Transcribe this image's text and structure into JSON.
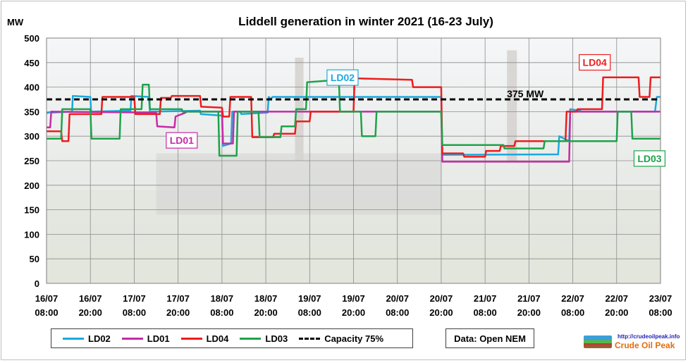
{
  "chart_data": {
    "type": "line",
    "title": "Liddell generation  in winter 2021 (16-23 July)",
    "ylabel": "MW",
    "xlabel": "",
    "ylim": [
      0,
      500
    ],
    "yticks": [
      0,
      50,
      100,
      150,
      200,
      250,
      300,
      350,
      400,
      450,
      500
    ],
    "xticks": [
      "16/07 08:00",
      "16/07 20:00",
      "17/07 08:00",
      "17/07 20:00",
      "18/07 08:00",
      "18/07 20:00",
      "19/07 08:00",
      "19/07 20:00",
      "20/07 08:00",
      "20/07 20:00",
      "21/07 08:00",
      "21/07 20:00",
      "22/07 08:00",
      "22/07 20:00",
      "23/07 08:00"
    ],
    "xlim_hours": [
      0,
      168
    ],
    "grid": true,
    "legend_position": "bottom",
    "series": [
      {
        "name": "LD02",
        "color": "#1ba8e0",
        "x": [
          0,
          1.5,
          1.6,
          7,
          7.2,
          12,
          12.2,
          23,
          23.2,
          28,
          28.3,
          42,
          42.2,
          48,
          48.3,
          50.5,
          50.8,
          53,
          53.3,
          60.5,
          60.8,
          61.5,
          61.8,
          108,
          108.3,
          140,
          140.3,
          143,
          143.3,
          146,
          146.3,
          166.5,
          167,
          168
        ],
        "y": [
          347,
          350,
          348,
          350,
          382,
          380,
          350,
          352,
          382,
          380,
          350,
          352,
          345,
          342,
          280,
          285,
          350,
          350,
          345,
          348,
          380,
          376,
          380,
          380,
          262,
          263,
          300,
          290,
          355,
          352,
          350,
          350,
          380,
          380
        ]
      },
      {
        "name": "LD01",
        "color": "#c52ba6",
        "x": [
          0,
          1,
          1.3,
          30,
          30.3,
          35,
          35.3,
          38,
          38.3,
          48,
          48.3,
          51,
          51.3,
          108,
          108.3,
          143,
          143.3,
          168
        ],
        "y": [
          318,
          318,
          350,
          348,
          320,
          318,
          340,
          348,
          350,
          350,
          285,
          285,
          350,
          350,
          248,
          248,
          350,
          350
        ]
      },
      {
        "name": "LD04",
        "color": "#ee1c1c",
        "x": [
          0,
          4,
          4.3,
          6,
          6.3,
          15,
          15.3,
          24,
          24.3,
          31,
          31.3,
          34,
          34.3,
          42,
          42.3,
          48,
          48.3,
          50,
          50.3,
          56,
          56.3,
          62,
          62.3,
          68,
          68.3,
          72,
          72.3,
          84,
          84.3,
          100,
          100.3,
          108,
          108.3,
          114,
          114.3,
          120,
          120.3,
          124,
          124.3,
          128,
          128.3,
          142,
          142.3,
          145,
          145.3,
          152,
          152.3,
          162,
          162.3,
          165,
          165.3,
          168
        ],
        "y": [
          310,
          310,
          290,
          290,
          345,
          345,
          380,
          380,
          345,
          345,
          378,
          378,
          382,
          382,
          360,
          358,
          340,
          340,
          380,
          380,
          298,
          298,
          305,
          305,
          330,
          330,
          350,
          350,
          418,
          415,
          400,
          400,
          265,
          265,
          258,
          258,
          270,
          270,
          280,
          280,
          290,
          290,
          350,
          350,
          355,
          355,
          420,
          420,
          380,
          380,
          420,
          420
        ]
      },
      {
        "name": "LD03",
        "color": "#1ea34a",
        "x": [
          0,
          4,
          4.3,
          12,
          12.3,
          20,
          20.3,
          26,
          26.3,
          28,
          28.3,
          37,
          37.3,
          47,
          47.3,
          52,
          52.3,
          58,
          58.3,
          64,
          64.3,
          68,
          68.3,
          71,
          71.3,
          80,
          80.3,
          86,
          86.3,
          90,
          90.3,
          96,
          96.3,
          108,
          108.3,
          125,
          125.3,
          136,
          136.3,
          156,
          156.3,
          160,
          160.3,
          168
        ],
        "y": [
          295,
          295,
          355,
          355,
          295,
          295,
          355,
          355,
          405,
          405,
          355,
          355,
          350,
          350,
          260,
          260,
          350,
          350,
          298,
          298,
          320,
          320,
          355,
          355,
          410,
          415,
          350,
          350,
          300,
          300,
          350,
          350,
          350,
          350,
          282,
          282,
          275,
          275,
          290,
          290,
          350,
          350,
          295,
          295
        ]
      },
      {
        "name": "Capacity 75%",
        "color": "#000000",
        "dashed": true,
        "x": [
          0,
          168
        ],
        "y": [
          375,
          375
        ]
      }
    ],
    "annotations": [
      {
        "text": "LD02",
        "color": "#1ba8e0",
        "hour": 81,
        "mw": 418
      },
      {
        "text": "LD01",
        "color": "#c52ba6",
        "hour": 37,
        "mw": 290
      },
      {
        "text": "LD04",
        "color": "#ee1c1c",
        "hour": 150,
        "mw": 449
      },
      {
        "text": "LD03",
        "color": "#1ea34a",
        "hour": 165,
        "mw": 253
      },
      {
        "text": "375 MW",
        "color": "#000000",
        "hour": 131,
        "mw": 385
      }
    ]
  },
  "legend": {
    "items": [
      {
        "label": "LD02",
        "color": "#1ba8e0"
      },
      {
        "label": "LD01",
        "color": "#c52ba6"
      },
      {
        "label": "LD04",
        "color": "#ee1c1c"
      },
      {
        "label": "LD03",
        "color": "#1ea34a"
      },
      {
        "label": "Capacity 75%",
        "color": "#000000",
        "dashed": true
      }
    ]
  },
  "source_label": "Data: Open NEM",
  "logo": {
    "url": "http://crudeoilpeak.info",
    "name": "Crude Oil Peak"
  }
}
